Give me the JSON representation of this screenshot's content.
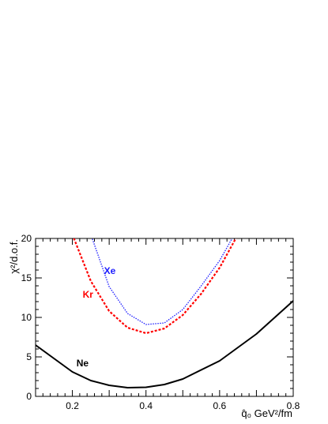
{
  "chart_data": {
    "type": "line",
    "xlabel": "q̂₀ GeV²/fm",
    "ylabel": "χ²/d.o.f.",
    "xlim": [
      0.1,
      0.8
    ],
    "ylim": [
      0,
      20
    ],
    "grid": false,
    "x_ticks": [
      "0.2",
      "0.4",
      "0.6",
      "0.8"
    ],
    "y_ticks": [
      "0",
      "5",
      "10",
      "15",
      "20"
    ],
    "series": [
      {
        "name": "Xe",
        "color": "#1a1aff",
        "style": "dotted",
        "points": [
          [
            0.25,
            20.5
          ],
          [
            0.3,
            13.9
          ],
          [
            0.35,
            10.5
          ],
          [
            0.4,
            9.1
          ],
          [
            0.45,
            9.3
          ],
          [
            0.5,
            11.0
          ],
          [
            0.55,
            14.0
          ],
          [
            0.6,
            17.2
          ],
          [
            0.64,
            20.5
          ]
        ]
      },
      {
        "name": "Kr",
        "color": "#ff0000",
        "style": "dashed",
        "points": [
          [
            0.2,
            20.5
          ],
          [
            0.25,
            14.6
          ],
          [
            0.3,
            10.8
          ],
          [
            0.35,
            8.7
          ],
          [
            0.4,
            8.0
          ],
          [
            0.45,
            8.6
          ],
          [
            0.5,
            10.3
          ],
          [
            0.55,
            13.0
          ],
          [
            0.6,
            16.3
          ],
          [
            0.65,
            20.5
          ]
        ]
      },
      {
        "name": "Ne",
        "color": "#000000",
        "style": "solid",
        "points": [
          [
            0.1,
            6.5
          ],
          [
            0.2,
            3.1
          ],
          [
            0.25,
            2.0
          ],
          [
            0.3,
            1.4
          ],
          [
            0.35,
            1.1
          ],
          [
            0.4,
            1.15
          ],
          [
            0.45,
            1.5
          ],
          [
            0.5,
            2.2
          ],
          [
            0.6,
            4.5
          ],
          [
            0.7,
            7.9
          ],
          [
            0.8,
            12.1
          ]
        ]
      }
    ]
  }
}
